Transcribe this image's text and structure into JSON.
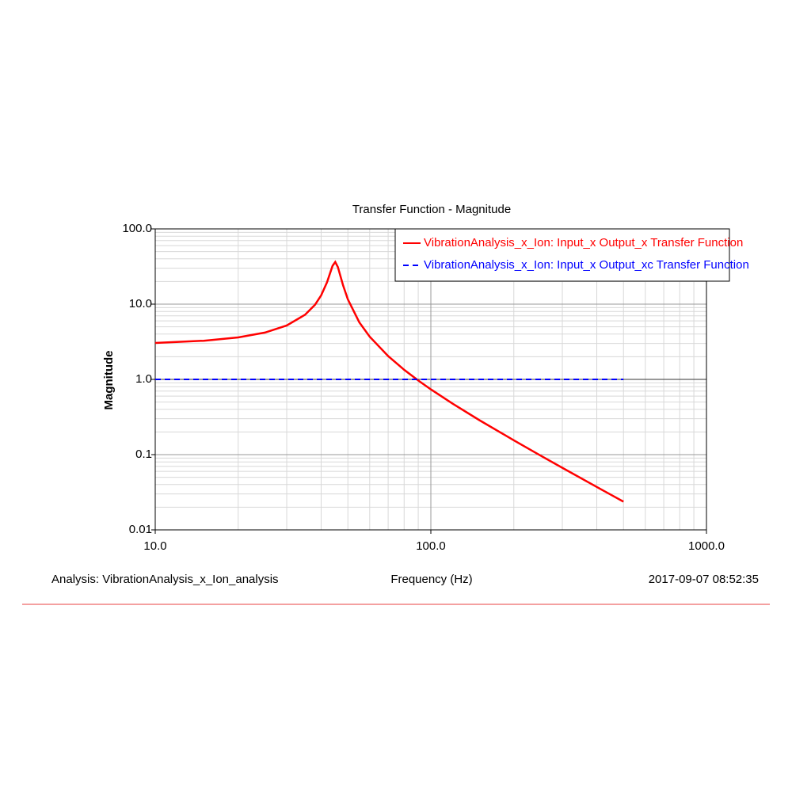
{
  "chart_data": {
    "type": "line",
    "title": "Transfer Function - Magnitude",
    "x_label": "Frequency (Hz)",
    "y_label": "Magnitude",
    "footer_left": "Analysis:  VibrationAnalysis_x_Ion_analysis",
    "footer_right": "2017-09-07 08:52:35",
    "xscale": "log",
    "yscale": "log",
    "grid": true,
    "minor_grid": true,
    "legend": "upper right",
    "xlim": [
      10,
      1000
    ],
    "xticks": [
      {
        "value": 10,
        "label": "10.0"
      },
      {
        "value": 100,
        "label": "100.0"
      },
      {
        "value": 1000,
        "label": "1000.0"
      }
    ],
    "ylim": [
      0.01,
      100
    ],
    "yticks": [
      0.01,
      0.1,
      {
        "value": 1,
        "label": "1.0"
      },
      {
        "value": 10,
        "label": "10.0"
      },
      {
        "value": 100,
        "label": "100.0"
      }
    ],
    "series": [
      {
        "name": "VibrationAnalysis_x_Ion: Input_x Output_x Transfer Function",
        "color": "#ff0000",
        "linestyle": "solid",
        "x": [
          10,
          15,
          20,
          25,
          30,
          35,
          38,
          40,
          42,
          44,
          45,
          46,
          48,
          50,
          55,
          60,
          70,
          80,
          90,
          100,
          120,
          150,
          200,
          250,
          300,
          400,
          500
        ],
        "values": [
          3.05,
          3.26,
          3.61,
          4.19,
          5.2,
          7.25,
          9.84,
          13.1,
          19.5,
          32.3,
          36.3,
          31.1,
          17.9,
          11.6,
          5.76,
          3.69,
          2.04,
          1.34,
          0.967,
          0.736,
          0.475,
          0.287,
          0.155,
          0.0971,
          0.0668,
          0.0372,
          0.0237
        ]
      },
      {
        "name": "VibrationAnalysis_x_Ion: Input_x Output_xc Transfer Function",
        "color": "#0000ff",
        "linestyle": "dashed",
        "x": [
          10,
          500
        ],
        "values": [
          1,
          1
        ]
      }
    ]
  }
}
